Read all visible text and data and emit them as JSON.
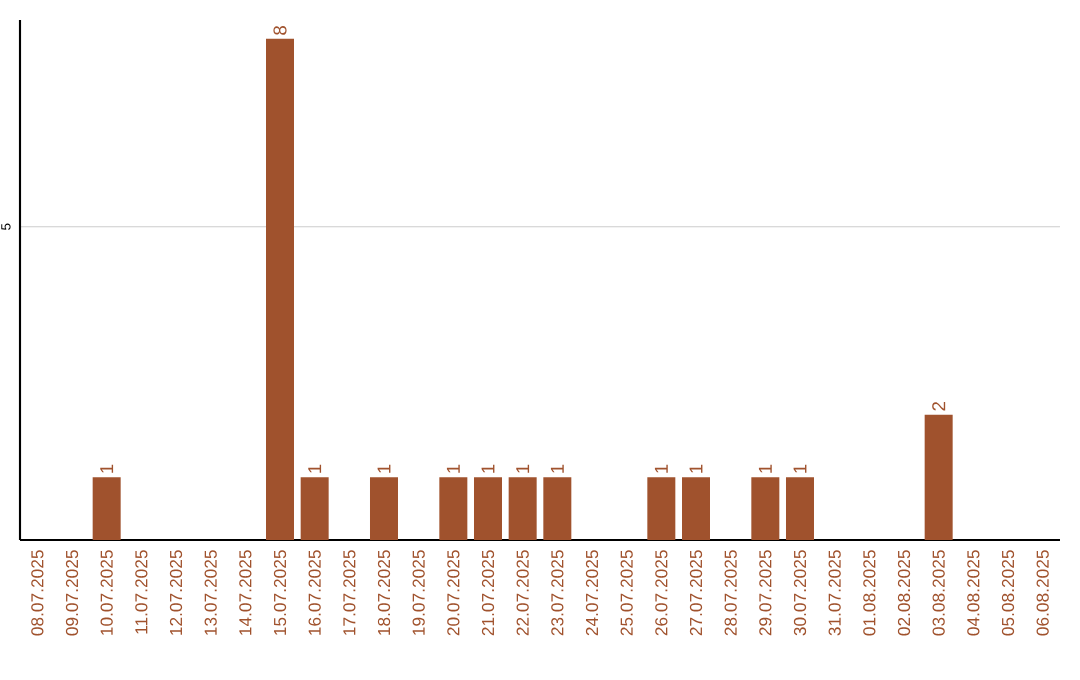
{
  "chart_data": {
    "type": "bar",
    "categories": [
      "08.07.2025",
      "09.07.2025",
      "10.07.2025",
      "11.07.2025",
      "12.07.2025",
      "13.07.2025",
      "14.07.2025",
      "15.07.2025",
      "16.07.2025",
      "17.07.2025",
      "18.07.2025",
      "19.07.2025",
      "20.07.2025",
      "21.07.2025",
      "22.07.2025",
      "23.07.2025",
      "24.07.2025",
      "25.07.2025",
      "26.07.2025",
      "27.07.2025",
      "28.07.2025",
      "29.07.2025",
      "30.07.2025",
      "31.07.2025",
      "01.08.2025",
      "02.08.2025",
      "03.08.2025",
      "04.08.2025",
      "05.08.2025",
      "06.08.2025"
    ],
    "values": [
      0,
      0,
      1,
      0,
      0,
      0,
      0,
      8,
      1,
      0,
      1,
      0,
      1,
      1,
      1,
      1,
      0,
      0,
      1,
      1,
      0,
      1,
      1,
      0,
      0,
      0,
      2,
      0,
      0,
      0
    ],
    "value_labels": [
      null,
      null,
      "1",
      null,
      null,
      null,
      null,
      "8",
      "1",
      null,
      "1",
      null,
      "1",
      "1",
      "1",
      "1",
      null,
      null,
      "1",
      "1",
      null,
      "1",
      "1",
      null,
      null,
      null,
      "2",
      null,
      null,
      null
    ],
    "color": "#a0522d",
    "ylim": [
      0,
      8.3
    ],
    "yticks": [
      5
    ],
    "grid": "y"
  }
}
